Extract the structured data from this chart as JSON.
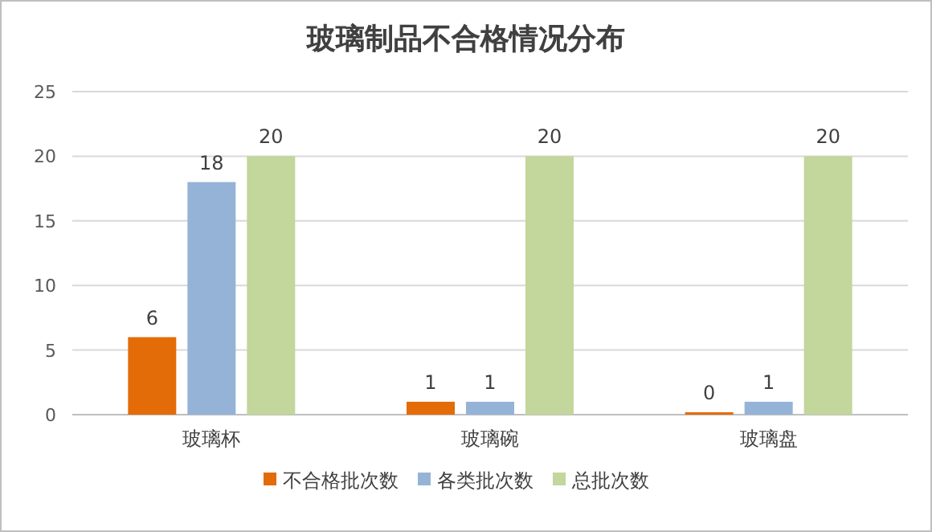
{
  "chart_data": {
    "type": "bar",
    "title": "玻璃制品不合格情况分布",
    "categories": [
      "玻璃杯",
      "玻璃碗",
      "玻璃盘"
    ],
    "series": [
      {
        "name": "不合格批次数",
        "color": "#e36c09",
        "values": [
          6,
          1,
          0
        ]
      },
      {
        "name": "各类批次数",
        "color": "#95b3d7",
        "values": [
          18,
          1,
          1
        ]
      },
      {
        "name": "总批次数",
        "color": "#c3d69b",
        "values": [
          20,
          20,
          20
        ]
      }
    ],
    "ylim": [
      0,
      25
    ],
    "yticks": [
      0,
      5,
      10,
      15,
      20,
      25
    ],
    "grid": "y",
    "legend": "bottom",
    "data_labels": true
  }
}
